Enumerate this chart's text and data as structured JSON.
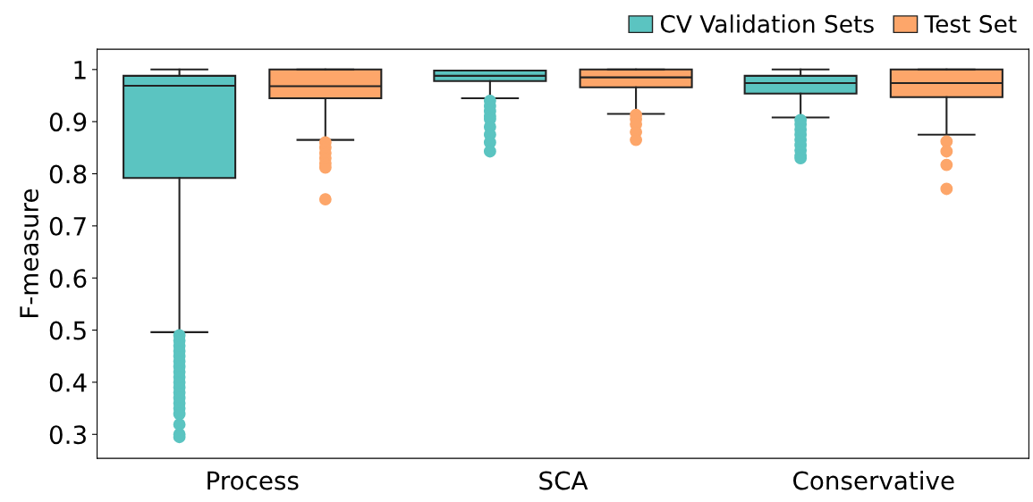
{
  "chart_data": {
    "type": "box",
    "ylabel": "F-measure",
    "categories": [
      "Process",
      "SCA",
      "Conservative"
    ],
    "series": [
      {
        "name": "CV Validation Sets",
        "color": "#5bc4c1",
        "boxes": [
          {
            "low": 0.496,
            "q1": 0.792,
            "median": 0.969,
            "q3": 0.988,
            "high": 1.0,
            "outliers": [
              0.49,
              0.48,
              0.47,
              0.46,
              0.45,
              0.44,
              0.43,
              0.42,
              0.41,
              0.4,
              0.39,
              0.38,
              0.37,
              0.36,
              0.35,
              0.339,
              0.319,
              0.3,
              0.295
            ]
          },
          {
            "low": 0.945,
            "q1": 0.978,
            "median": 0.988,
            "q3": 0.998,
            "high": 0.998,
            "outliers": [
              0.94,
              0.93,
              0.92,
              0.91,
              0.905,
              0.89,
              0.875,
              0.86,
              0.843
            ]
          },
          {
            "low": 0.908,
            "q1": 0.954,
            "median": 0.974,
            "q3": 0.988,
            "high": 1.0,
            "outliers": [
              0.903,
              0.895,
              0.885,
              0.875,
              0.865,
              0.855,
              0.845,
              0.835,
              0.83
            ]
          }
        ]
      },
      {
        "name": "Test Set",
        "color": "#fda66a",
        "boxes": [
          {
            "low": 0.865,
            "q1": 0.945,
            "median": 0.968,
            "q3": 1.0,
            "high": 1.0,
            "outliers": [
              0.86,
              0.85,
              0.84,
              0.83,
              0.82,
              0.812,
              0.751
            ]
          },
          {
            "low": 0.915,
            "q1": 0.966,
            "median": 0.985,
            "q3": 1.0,
            "high": 1.0,
            "outliers": [
              0.913,
              0.905,
              0.895,
              0.88,
              0.865
            ]
          },
          {
            "low": 0.875,
            "q1": 0.947,
            "median": 0.974,
            "q3": 1.0,
            "high": 1.0,
            "outliers": [
              0.862,
              0.843,
              0.817,
              0.771
            ]
          }
        ]
      }
    ],
    "ylim": [
      0.254,
      1.039
    ],
    "yticks": [
      0.3,
      0.4,
      0.5,
      0.6,
      0.7,
      0.8,
      0.9,
      1
    ],
    "grid": false,
    "legend": "top right"
  }
}
